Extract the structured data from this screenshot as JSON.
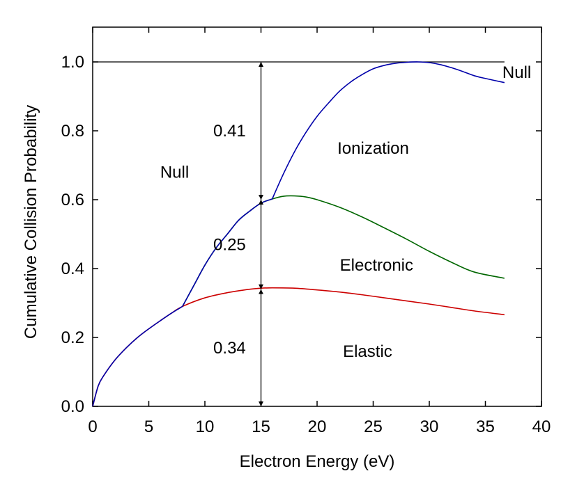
{
  "chart_data": {
    "type": "line",
    "title": "",
    "xlabel": "Electron Energy (eV)",
    "ylabel": "Cumulative Collision Probability",
    "xlim": [
      0,
      40
    ],
    "ylim": [
      0,
      1.1
    ],
    "x_ticks": [
      0,
      5,
      10,
      15,
      20,
      25,
      30,
      35,
      40
    ],
    "y_ticks": [
      0.0,
      0.2,
      0.4,
      0.6,
      0.8,
      1.0
    ],
    "x_tick_labels": [
      "0",
      "5",
      "10",
      "15",
      "20",
      "25",
      "30",
      "35",
      "40"
    ],
    "y_tick_labels": [
      "0.0",
      "0.2",
      "0.4",
      "0.6",
      "0.8",
      "1.0"
    ],
    "grid": false,
    "colors": {
      "elastic": "#cc0000",
      "electronic": "#006600",
      "ionization": "#0000aa",
      "reference": "#000000"
    },
    "series": [
      {
        "key": "elastic",
        "color": "#cc0000",
        "x": [
          0,
          0.5,
          1,
          2,
          3,
          4,
          5,
          6,
          7,
          8,
          10,
          12,
          14,
          15,
          16,
          18,
          20,
          22,
          24,
          26,
          28,
          30,
          32,
          34,
          36.7
        ],
        "y": [
          0.0,
          0.06,
          0.09,
          0.135,
          0.17,
          0.2,
          0.225,
          0.248,
          0.27,
          0.29,
          0.315,
          0.33,
          0.34,
          0.343,
          0.344,
          0.343,
          0.338,
          0.332,
          0.324,
          0.315,
          0.306,
          0.297,
          0.287,
          0.277,
          0.266
        ]
      },
      {
        "key": "electronic",
        "color": "#006600",
        "x": [
          8,
          9,
          10,
          11,
          12,
          13,
          14,
          15,
          16,
          17,
          18,
          19,
          20,
          22,
          24,
          26,
          28,
          30,
          32,
          34,
          36.7
        ],
        "y": [
          0.29,
          0.35,
          0.41,
          0.46,
          0.5,
          0.54,
          0.567,
          0.59,
          0.602,
          0.61,
          0.611,
          0.608,
          0.6,
          0.578,
          0.55,
          0.518,
          0.485,
          0.45,
          0.418,
          0.39,
          0.372
        ]
      },
      {
        "key": "ionization",
        "color": "#0000aa",
        "x": [
          16,
          17,
          18,
          19,
          20,
          21,
          22,
          23,
          24,
          25,
          26,
          27,
          28,
          29,
          30,
          31,
          32,
          33,
          34,
          35,
          36.7
        ],
        "y": [
          0.602,
          0.675,
          0.74,
          0.795,
          0.842,
          0.88,
          0.915,
          0.942,
          0.963,
          0.98,
          0.99,
          0.996,
          0.999,
          1.0,
          0.998,
          0.992,
          0.983,
          0.972,
          0.96,
          0.952,
          0.94
        ]
      }
    ],
    "reference_line": {
      "y": 1.0,
      "x_range": [
        0,
        36.7
      ]
    },
    "region_labels": [
      {
        "text": "Null",
        "x": 7.3,
        "y": 0.68
      },
      {
        "text": "Ionization",
        "x": 25,
        "y": 0.75
      },
      {
        "text": "Electronic",
        "x": 25.3,
        "y": 0.41
      },
      {
        "text": "Elastic",
        "x": 24.5,
        "y": 0.16
      },
      {
        "text": "Null",
        "x": 37.8,
        "y": 0.97
      }
    ],
    "annotations": [
      {
        "text": "0.41",
        "from": 0.6,
        "to": 1.0,
        "at_x": 15,
        "label_x": 12.2
      },
      {
        "text": "0.25",
        "from": 0.34,
        "to": 0.6,
        "at_x": 15,
        "label_x": 12.2
      },
      {
        "text": "0.34",
        "from": 0.0,
        "to": 0.34,
        "at_x": 15,
        "label_x": 12.2
      }
    ]
  }
}
